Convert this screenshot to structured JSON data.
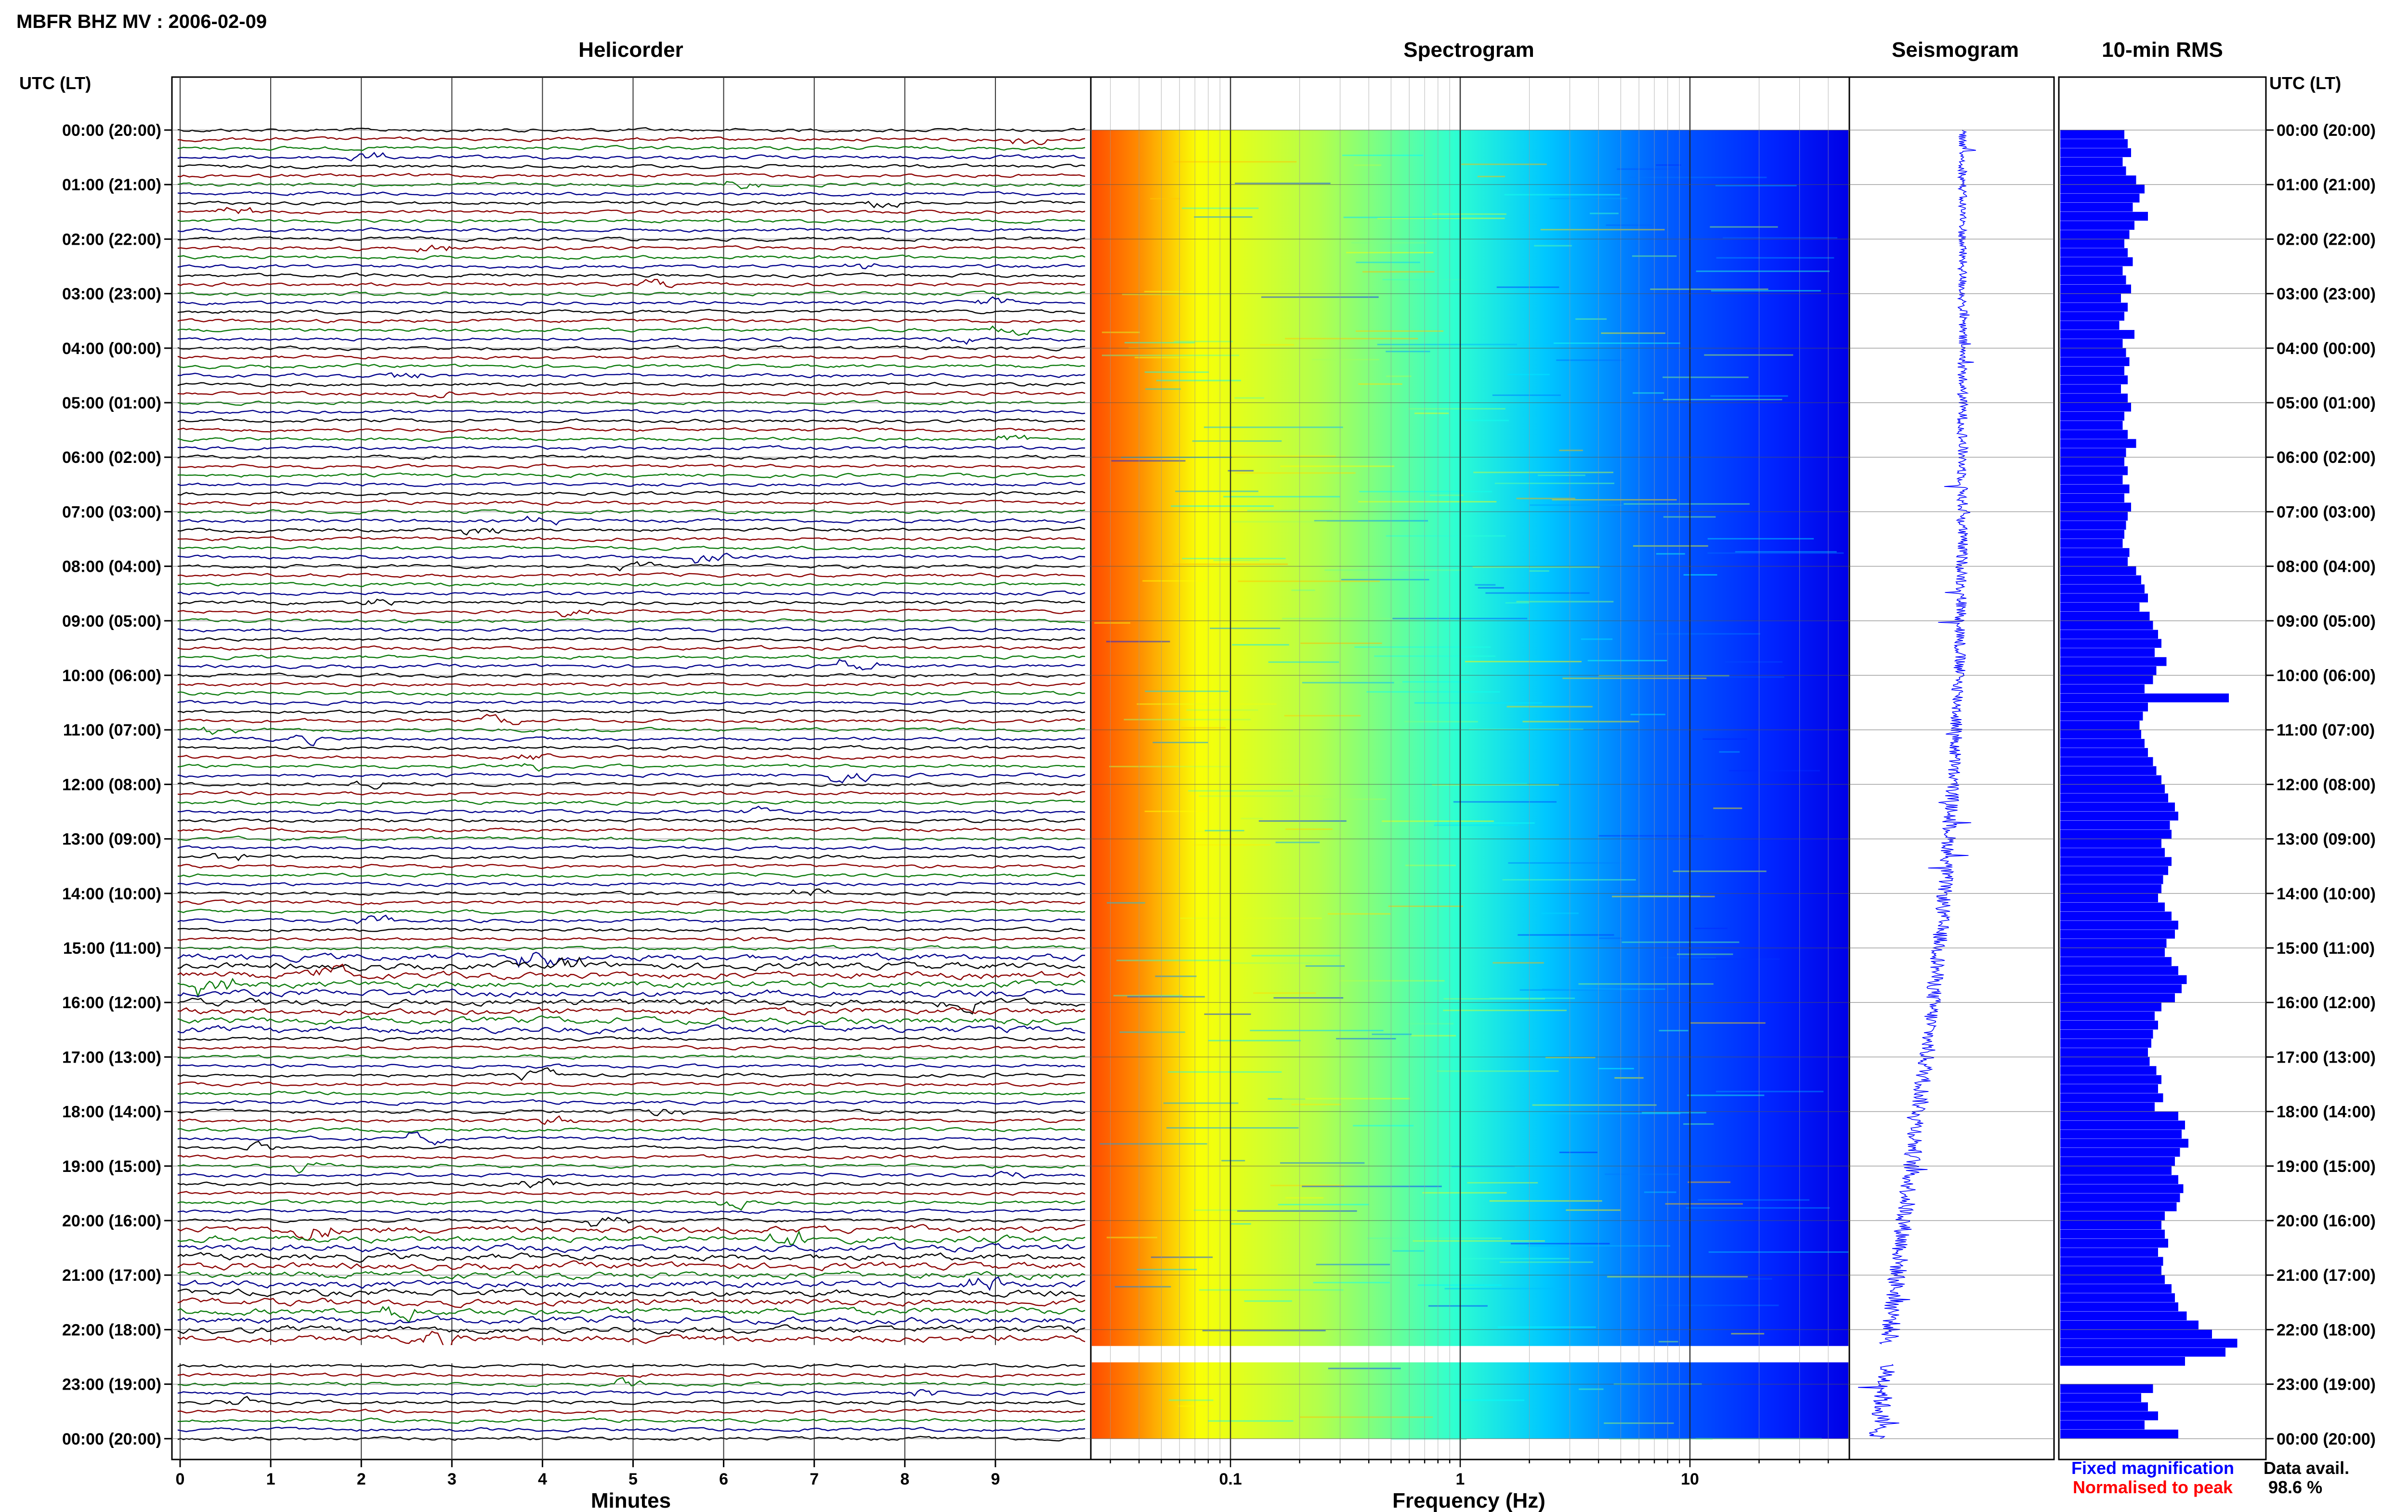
{
  "header": {
    "title": "MBFR BHZ MV : 2006-02-09"
  },
  "panels": {
    "helicorder": "Helicorder",
    "spectrogram": "Spectrogram",
    "seismogram": "Seismogram",
    "rms": "10-min RMS"
  },
  "axes": {
    "left_time_label": "UTC (LT)",
    "right_time_label": "UTC (LT)",
    "helicorder_xlabel": "Minutes",
    "spectrogram_xlabel": "Frequency (Hz)"
  },
  "legend": {
    "fixed": "Fixed magnification",
    "normalised": "Normalised to peak",
    "data_avail_label": "Data avail.",
    "data_avail_value": "98.6 %",
    "fixed_color": "#0000ff",
    "normalised_color": "#ff0000"
  },
  "colors": {
    "trace_cycle": [
      "#000000",
      "#8b0000",
      "#0b7a0b",
      "#00008b"
    ],
    "rms_bar": "#0000ff",
    "seismogram": "#0000ff"
  },
  "chart_data": [
    {
      "type": "line",
      "panel": "helicorder",
      "title": "Helicorder",
      "xlabel": "Minutes",
      "x_ticks": [
        "0",
        "1",
        "2",
        "3",
        "4",
        "5",
        "6",
        "7",
        "8",
        "9"
      ],
      "xlim": [
        0,
        10
      ],
      "y_time_ticks_utc_lt": [
        "00:00 (20:00)",
        "01:00 (21:00)",
        "02:00 (22:00)",
        "03:00 (23:00)",
        "04:00 (00:00)",
        "05:00 (01:00)",
        "06:00 (02:00)",
        "07:00 (03:00)",
        "08:00 (04:00)",
        "09:00 (05:00)",
        "10:00 (06:00)",
        "11:00 (07:00)",
        "12:00 (08:00)",
        "13:00 (09:00)",
        "14:00 (10:00)",
        "15:00 (11:00)",
        "16:00 (12:00)",
        "17:00 (13:00)",
        "18:00 (14:00)",
        "19:00 (15:00)",
        "20:00 (16:00)",
        "21:00 (17:00)",
        "22:00 (18:00)",
        "23:00 (19:00)",
        "00:00 (20:00)"
      ],
      "traces_per_hour": 6,
      "data_gap_hours": [
        22.3,
        22.6
      ]
    },
    {
      "type": "heatmap",
      "panel": "spectrogram",
      "title": "Spectrogram",
      "xlabel": "Frequency (Hz)",
      "x_scale": "log",
      "x_ticks": [
        "0.1",
        "1",
        "10"
      ],
      "xlim": [
        0.02,
        50
      ],
      "colormap": "jet"
    },
    {
      "type": "line",
      "panel": "seismogram",
      "title": "Seismogram"
    },
    {
      "type": "bar",
      "panel": "rms",
      "title": "10-min RMS",
      "orientation": "horizontal",
      "bins": 144,
      "values_relative": [
        0.38,
        0.4,
        0.42,
        0.37,
        0.39,
        0.45,
        0.5,
        0.47,
        0.43,
        0.52,
        0.44,
        0.41,
        0.38,
        0.4,
        0.43,
        0.37,
        0.39,
        0.42,
        0.36,
        0.4,
        0.38,
        0.35,
        0.44,
        0.37,
        0.39,
        0.41,
        0.38,
        0.4,
        0.36,
        0.4,
        0.42,
        0.38,
        0.37,
        0.4,
        0.45,
        0.39,
        0.38,
        0.4,
        0.37,
        0.41,
        0.38,
        0.42,
        0.4,
        0.39,
        0.38,
        0.37,
        0.41,
        0.4,
        0.45,
        0.48,
        0.5,
        0.52,
        0.47,
        0.53,
        0.55,
        0.58,
        0.6,
        0.56,
        0.63,
        0.57,
        0.55,
        0.5,
        1.0,
        0.52,
        0.49,
        0.47,
        0.48,
        0.5,
        0.52,
        0.55,
        0.57,
        0.6,
        0.62,
        0.64,
        0.68,
        0.7,
        0.65,
        0.66,
        0.6,
        0.62,
        0.66,
        0.64,
        0.61,
        0.6,
        0.58,
        0.62,
        0.66,
        0.7,
        0.68,
        0.63,
        0.62,
        0.66,
        0.7,
        0.75,
        0.72,
        0.68,
        0.6,
        0.56,
        0.58,
        0.55,
        0.54,
        0.52,
        0.53,
        0.57,
        0.6,
        0.58,
        0.61,
        0.56,
        0.7,
        0.74,
        0.72,
        0.76,
        0.71,
        0.68,
        0.66,
        0.7,
        0.73,
        0.71,
        0.69,
        0.62,
        0.6,
        0.62,
        0.64,
        0.58,
        0.61,
        0.6,
        0.62,
        0.66,
        0.68,
        0.7,
        0.75,
        0.82,
        0.9,
        1.05,
        0.98,
        0.74,
        0.0,
        0.0,
        0.55,
        0.48,
        0.52,
        0.58,
        0.5,
        0.7
      ]
    }
  ]
}
